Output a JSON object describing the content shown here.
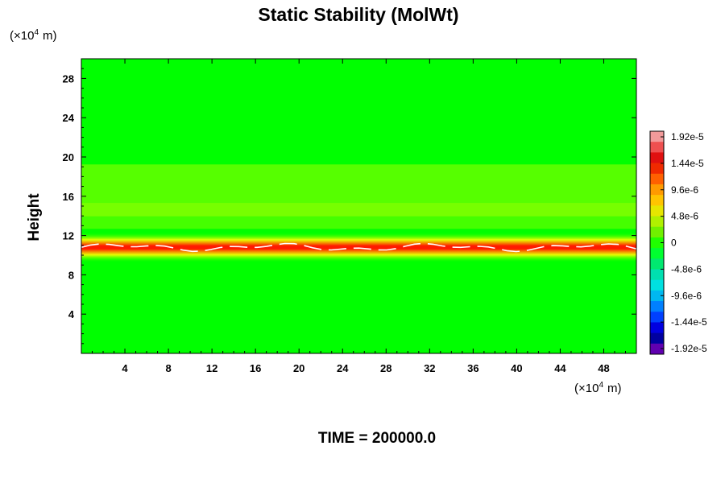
{
  "chart_data": {
    "type": "heatmap",
    "title": "Static Stability (MolWt)",
    "ylabel": "Height",
    "x_scale_label": "(×10",
    "y_scale_label": "(×10",
    "scale_exponent": "4",
    "scale_unit": "m)",
    "footer": "TIME = 200000.0",
    "xlim": [
      0,
      51
    ],
    "ylim": [
      0,
      30
    ],
    "x_ticks": [
      4,
      8,
      12,
      16,
      20,
      24,
      28,
      32,
      36,
      40,
      44,
      48
    ],
    "y_ticks": [
      4,
      8,
      12,
      16,
      20,
      24,
      28
    ],
    "x_tick_labels": [
      "4",
      "8",
      "12",
      "16",
      "20",
      "24",
      "28",
      "32",
      "36",
      "40",
      "44",
      "48"
    ],
    "y_tick_labels": [
      "4",
      "8",
      "12",
      "16",
      "20",
      "24",
      "28"
    ],
    "background_value": 0,
    "features": [
      {
        "feature": "strong positive layer",
        "y_center": 10.8,
        "y_half_width": 0.7,
        "value": 1.9e-05
      },
      {
        "feature": "weak secondary layer",
        "y_center": 16.6,
        "y_half_width": 1.2,
        "value": 5e-06
      },
      {
        "feature": "weak upper band",
        "y_center": 14.0,
        "y_half_width": 0.6,
        "value": 3e-06
      }
    ],
    "colorbar": {
      "range": [
        -1.92e-05,
        1.92e-05
      ],
      "tick_labels": [
        "1.92e-5",
        "1.44e-5",
        "9.6e-6",
        "4.8e-6",
        "0",
        "-4.8e-6",
        "-9.6e-6",
        "-1.44e-5",
        "-1.92e-5"
      ],
      "colors": [
        "#f29a9a",
        "#ee5050",
        "#e01010",
        "#f02a00",
        "#ff6000",
        "#ff9a00",
        "#ffc400",
        "#e6e600",
        "#b0f000",
        "#70f000",
        "#20ff00",
        "#00ff30",
        "#00e870",
        "#00e0b0",
        "#00e0e0",
        "#00b8f0",
        "#0080ff",
        "#0040ff",
        "#0000e0",
        "#0000a0",
        "#6000b0"
      ]
    }
  }
}
